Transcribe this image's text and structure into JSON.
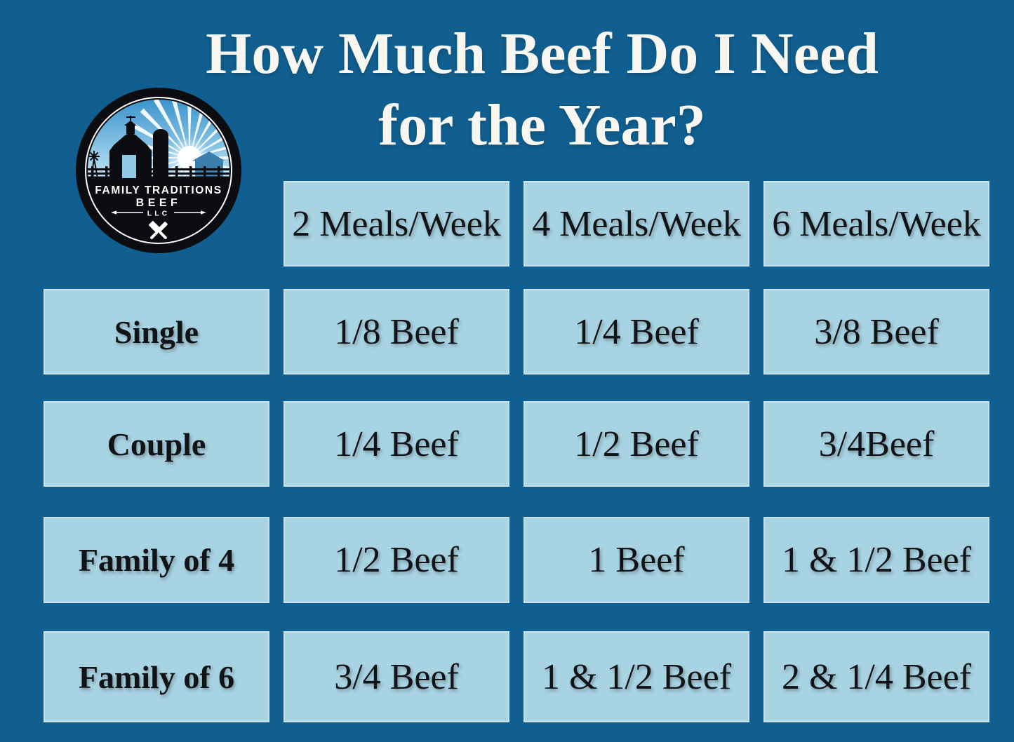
{
  "colors": {
    "background": "#115f90",
    "cell": "#a8d3e3",
    "cell_border": "#d3e8f1",
    "text": "#101417",
    "title": "#f7f6f1",
    "logo_black": "#0c0d10",
    "logo_sky_top": "#3a94cc",
    "logo_sky_bottom": "#bfe4f6",
    "logo_distant_building": "#3c7fae",
    "logo_barn_door": "#8fc9e6"
  },
  "title": {
    "line1": "How Much Beef Do I Need",
    "line2": "for the Year?"
  },
  "logo": {
    "line1": "FAMILY TRADITIONS",
    "line2": "BEEF",
    "line3": "LLC"
  },
  "chart_data": {
    "type": "table",
    "title": "How Much Beef Do I Need for the Year?",
    "columns": [
      "2 Meals/Week",
      "4 Meals/Week",
      "6 Meals/Week"
    ],
    "rows": [
      {
        "label": "Single",
        "values": [
          "1/8 Beef",
          "1/4 Beef",
          "3/8 Beef"
        ]
      },
      {
        "label": "Couple",
        "values": [
          "1/4 Beef",
          "1/2 Beef",
          "3/4Beef"
        ]
      },
      {
        "label": "Family of 4",
        "values": [
          "1/2 Beef",
          "1 Beef",
          "1 & 1/2 Beef"
        ]
      },
      {
        "label": "Family of 6",
        "values": [
          "3/4 Beef",
          "1 & 1/2 Beef",
          "2 & 1/4 Beef"
        ]
      }
    ]
  }
}
